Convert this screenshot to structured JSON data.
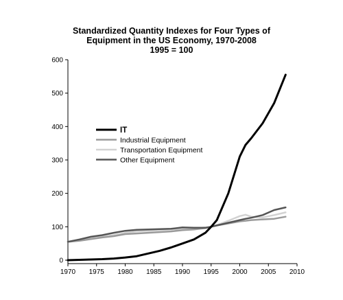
{
  "chart_data": {
    "type": "line",
    "title_lines": [
      "Standardized Quantity Indexes for Four Types of",
      "Equipment in the US Economy, 1970-2008",
      "1995 = 100"
    ],
    "xlabel": "",
    "ylabel": "",
    "xlim": [
      1970,
      2010
    ],
    "ylim": [
      0,
      600
    ],
    "x_ticks": [
      1970,
      1975,
      1980,
      1985,
      1990,
      1995,
      2000,
      2005,
      2010
    ],
    "y_ticks": [
      0,
      100,
      200,
      300,
      400,
      500,
      600
    ],
    "grid": false,
    "legend_position": "center-left",
    "x": [
      1970,
      1972,
      1974,
      1976,
      1978,
      1980,
      1982,
      1984,
      1986,
      1988,
      1990,
      1992,
      1994,
      1995,
      1996,
      1998,
      2000,
      2001,
      2002,
      2004,
      2006,
      2008
    ],
    "series": [
      {
        "name": "IT",
        "color": "#000000",
        "width": 3,
        "values": [
          0,
          1,
          2,
          3,
          5,
          8,
          12,
          20,
          28,
          38,
          50,
          62,
          82,
          100,
          120,
          200,
          310,
          345,
          365,
          410,
          470,
          555
        ]
      },
      {
        "name": "Industrial Equipment",
        "color": "#9a9a9a",
        "width": 2.5,
        "values": [
          55,
          58,
          63,
          68,
          72,
          78,
          80,
          82,
          84,
          86,
          90,
          92,
          96,
          100,
          104,
          110,
          116,
          118,
          120,
          122,
          124,
          130
        ]
      },
      {
        "name": "Transportation Equipment",
        "color": "#d2d2d2",
        "width": 2.5,
        "values": [
          55,
          60,
          66,
          70,
          75,
          82,
          86,
          88,
          90,
          92,
          94,
          95,
          98,
          100,
          105,
          118,
          132,
          136,
          130,
          128,
          135,
          143
        ]
      },
      {
        "name": "Other Equipment",
        "color": "#555555",
        "width": 2.5,
        "values": [
          55,
          62,
          70,
          75,
          82,
          88,
          91,
          92,
          93,
          94,
          98,
          97,
          97,
          100,
          104,
          112,
          120,
          124,
          127,
          135,
          150,
          158
        ]
      }
    ]
  }
}
